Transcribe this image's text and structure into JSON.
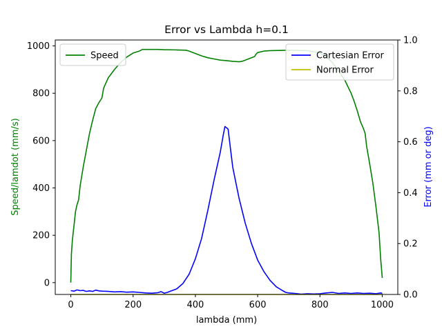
{
  "chart_data": {
    "type": "line",
    "title": "Error vs Lambda h=0.1",
    "xlabel": "lambda (mm)",
    "ylabel_left": "Speed/lamdot (mm/s)",
    "ylabel_right": "Error (mm or deg)",
    "xlim": [
      -50,
      1050
    ],
    "ylim_left": [
      -50,
      1025
    ],
    "ylim_right": [
      0,
      1
    ],
    "x_ticks": [
      0,
      200,
      400,
      600,
      800,
      1000
    ],
    "y_ticks_left": [
      0,
      200,
      400,
      600,
      800,
      1000
    ],
    "y_ticks_right": [
      0.0,
      0.2,
      0.4,
      0.6,
      0.8,
      1.0
    ],
    "grid": false,
    "legend_left": {
      "placement": "top-left",
      "entries": [
        {
          "name": "Speed",
          "color": "#008000"
        }
      ]
    },
    "legend_right": {
      "placement": "top-right",
      "entries": [
        {
          "name": "Cartesian Error",
          "color": "#0000ff"
        },
        {
          "name": "Normal Error",
          "color": "#bfbf00"
        }
      ]
    },
    "series": [
      {
        "name": "Speed",
        "axis": "left",
        "color": "#008000",
        "x": [
          0,
          2,
          5,
          10,
          15,
          20,
          25,
          30,
          40,
          50,
          60,
          70,
          80,
          90,
          100,
          105,
          110,
          120,
          140,
          160,
          180,
          200,
          220,
          230,
          250,
          280,
          300,
          340,
          370,
          380,
          400,
          420,
          440,
          460,
          480,
          500,
          520,
          540,
          550,
          560,
          580,
          590,
          595,
          600,
          620,
          640,
          700,
          760,
          800,
          820,
          840,
          860,
          880,
          900,
          910,
          920,
          930,
          940,
          945,
          950,
          960,
          970,
          980,
          990,
          995,
          1000
        ],
        "y": [
          0,
          120,
          180,
          240,
          300,
          330,
          350,
          410,
          490,
          560,
          630,
          685,
          735,
          760,
          780,
          820,
          835,
          865,
          900,
          930,
          953,
          970,
          978,
          985,
          985,
          985,
          984,
          983,
          982,
          978,
          968,
          958,
          950,
          945,
          940,
          938,
          935,
          933,
          935,
          940,
          950,
          955,
          965,
          972,
          978,
          980,
          982,
          980,
          970,
          955,
          930,
          895,
          855,
          800,
          765,
          725,
          680,
          650,
          630,
          575,
          500,
          420,
          320,
          210,
          100,
          20
        ]
      },
      {
        "name": "Cartesian Error",
        "axis": "right",
        "color": "#0000ff",
        "x": [
          0,
          10,
          20,
          30,
          40,
          50,
          60,
          70,
          80,
          90,
          100,
          120,
          140,
          160,
          180,
          200,
          220,
          240,
          260,
          280,
          290,
          300,
          310,
          320,
          340,
          360,
          380,
          400,
          420,
          440,
          460,
          480,
          490,
          495,
          500,
          505,
          510,
          520,
          540,
          560,
          580,
          600,
          620,
          640,
          660,
          680,
          690,
          700,
          720,
          740,
          760,
          780,
          800,
          820,
          840,
          860,
          880,
          900,
          920,
          940,
          960,
          980,
          995,
          998,
          1000
        ],
        "y": [
          0.015,
          0.013,
          0.018,
          0.015,
          0.016,
          0.012,
          0.014,
          0.012,
          0.017,
          0.014,
          0.013,
          0.012,
          0.01,
          0.011,
          0.009,
          0.01,
          0.008,
          0.006,
          0.005,
          0.007,
          0.011,
          0.005,
          0.008,
          0.013,
          0.022,
          0.043,
          0.08,
          0.14,
          0.22,
          0.33,
          0.45,
          0.56,
          0.63,
          0.66,
          0.655,
          0.65,
          0.6,
          0.5,
          0.38,
          0.28,
          0.2,
          0.135,
          0.09,
          0.055,
          0.03,
          0.015,
          0.008,
          0.006,
          0.004,
          0.001,
          0.003,
          0.002,
          0.003,
          0.006,
          0.008,
          0.004,
          0.006,
          0.004,
          0.006,
          0.004,
          0.005,
          0.003,
          0.006,
          0.005,
          0.004
        ]
      },
      {
        "name": "Normal Error",
        "axis": "right",
        "color": "#bfbf00",
        "x": [
          0,
          1000
        ],
        "y": [
          0.0,
          0.0
        ]
      }
    ]
  }
}
